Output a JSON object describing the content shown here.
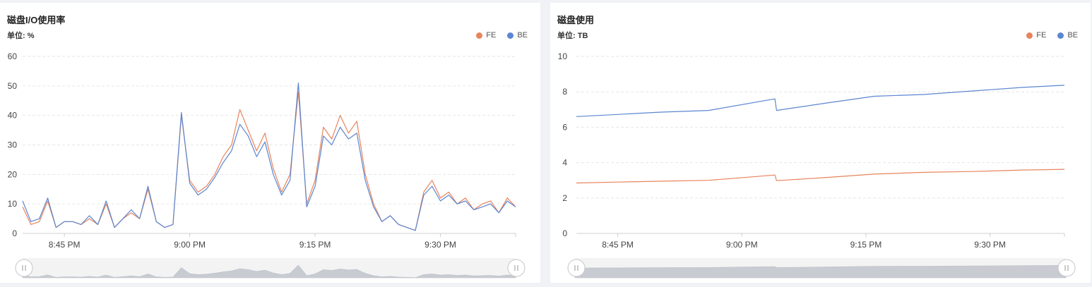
{
  "panels": [
    {
      "title": "磁盘I/O使用率",
      "unit_label": "单位: %",
      "legend": [
        {
          "name": "FE",
          "color": "#e8845c"
        },
        {
          "name": "BE",
          "color": "#5b86d1"
        }
      ]
    },
    {
      "title": "磁盘使用",
      "unit_label": "单位: TB",
      "legend": [
        {
          "name": "FE",
          "color": "#e8845c"
        },
        {
          "name": "BE",
          "color": "#5b86d1"
        }
      ]
    }
  ],
  "chart_data": [
    {
      "type": "line",
      "title": "磁盘I/O使用率",
      "ylabel": "单位: %",
      "ylim": [
        0,
        60
      ],
      "y_ticks": [
        0,
        10,
        20,
        30,
        40,
        50,
        60
      ],
      "x_tick_labels": [
        "8:45 PM",
        "9:00 PM",
        "9:15 PM",
        "9:30 PM"
      ],
      "x_range_minutes": [
        "8:40 PM",
        "9:39 PM"
      ],
      "x_tick_minutes": [
        5,
        20,
        35,
        50
      ],
      "grid": true,
      "legend_position": "top-right",
      "series": [
        {
          "name": "FE",
          "color": "#e8845c",
          "x_minutes": [
            0,
            1,
            2,
            3,
            4,
            5,
            6,
            7,
            8,
            9,
            10,
            11,
            12,
            13,
            14,
            15,
            16,
            17,
            18,
            19,
            20,
            21,
            22,
            23,
            24,
            25,
            26,
            27,
            28,
            29,
            30,
            31,
            32,
            33,
            34,
            35,
            36,
            37,
            38,
            39,
            40,
            41,
            42,
            43,
            44,
            45,
            46,
            47,
            48,
            49,
            50,
            51,
            52,
            53,
            54,
            55,
            56,
            57,
            58,
            59
          ],
          "values": [
            9,
            3,
            4,
            11,
            2,
            4,
            4,
            3,
            5,
            3,
            10,
            2,
            5,
            7,
            5,
            15,
            4,
            2,
            3,
            40,
            18,
            14,
            16,
            20,
            26,
            30,
            42,
            35,
            28,
            34,
            22,
            14,
            20,
            48,
            10,
            18,
            36,
            32,
            40,
            34,
            38,
            20,
            10,
            4,
            6,
            3,
            2,
            1,
            14,
            18,
            12,
            14,
            10,
            12,
            8,
            10,
            11,
            7,
            12,
            9
          ]
        },
        {
          "name": "BE",
          "color": "#5b86d1",
          "x_minutes": [
            0,
            1,
            2,
            3,
            4,
            5,
            6,
            7,
            8,
            9,
            10,
            11,
            12,
            13,
            14,
            15,
            16,
            17,
            18,
            19,
            20,
            21,
            22,
            23,
            24,
            25,
            26,
            27,
            28,
            29,
            30,
            31,
            32,
            33,
            34,
            35,
            36,
            37,
            38,
            39,
            40,
            41,
            42,
            43,
            44,
            45,
            46,
            47,
            48,
            49,
            50,
            51,
            52,
            53,
            54,
            55,
            56,
            57,
            58,
            59
          ],
          "values": [
            11,
            4,
            5,
            12,
            2,
            4,
            4,
            3,
            6,
            3,
            11,
            2,
            5,
            8,
            5,
            16,
            4,
            2,
            3,
            41,
            17,
            13,
            15,
            19,
            24,
            28,
            37,
            33,
            26,
            31,
            20,
            13,
            18,
            51,
            9,
            16,
            33,
            30,
            36,
            32,
            34,
            18,
            9,
            4,
            6,
            3,
            2,
            1,
            13,
            16,
            11,
            13,
            10,
            11,
            8,
            9,
            10,
            7,
            11,
            9
          ]
        }
      ]
    },
    {
      "type": "line",
      "title": "磁盘使用",
      "ylabel": "单位: TB",
      "ylim": [
        0,
        10
      ],
      "y_ticks": [
        0,
        2,
        4,
        6,
        8,
        10
      ],
      "x_tick_labels": [
        "8:45 PM",
        "9:00 PM",
        "9:15 PM",
        "9:30 PM"
      ],
      "x_range_minutes": [
        "8:40 PM",
        "9:39 PM"
      ],
      "x_tick_minutes": [
        5,
        20,
        35,
        50
      ],
      "grid": true,
      "legend_position": "top-right",
      "series": [
        {
          "name": "FE",
          "color": "#e8845c",
          "x_minutes": [
            0,
            5,
            10,
            16,
            24,
            24.2,
            30,
            36,
            42,
            48,
            54,
            59
          ],
          "values": [
            2.85,
            2.9,
            2.95,
            3.0,
            3.3,
            2.98,
            3.15,
            3.35,
            3.45,
            3.5,
            3.58,
            3.62
          ]
        },
        {
          "name": "BE",
          "color": "#5b86d1",
          "x_minutes": [
            0,
            5,
            10,
            16,
            24,
            24.2,
            30,
            36,
            42,
            48,
            54,
            59
          ],
          "values": [
            6.6,
            6.72,
            6.85,
            6.95,
            7.6,
            6.95,
            7.35,
            7.75,
            7.85,
            8.05,
            8.25,
            8.37
          ]
        }
      ]
    }
  ]
}
